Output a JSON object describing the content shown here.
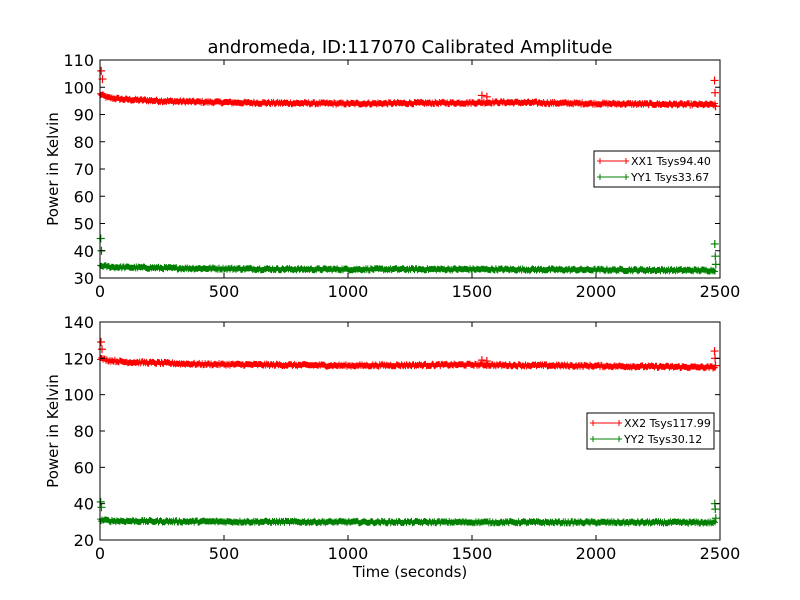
{
  "figure": {
    "title": "andromeda, ID:117070 Calibrated Amplitude",
    "xlabel": "Time (seconds)"
  },
  "chart_data": [
    {
      "type": "scatter",
      "ylabel": "Power in Kelvin",
      "xlim": [
        0,
        2500
      ],
      "ylim": [
        30,
        110
      ],
      "xticks": [
        0,
        500,
        1000,
        1500,
        2000,
        2500
      ],
      "yticks": [
        30,
        40,
        50,
        60,
        70,
        80,
        90,
        100,
        110
      ],
      "legend_position": "center-right",
      "series": [
        {
          "name": "XX1 Tsys94.40",
          "color": "#ff0000",
          "x_range": [
            0,
            2480
          ],
          "trend": [
            [
              0,
              97.5
            ],
            [
              30,
              96.2
            ],
            [
              100,
              95.5
            ],
            [
              300,
              94.8
            ],
            [
              600,
              94.3
            ],
            [
              1000,
              94.0
            ],
            [
              1500,
              94.3
            ],
            [
              1600,
              94.5
            ],
            [
              2000,
              94.0
            ],
            [
              2480,
              93.6
            ]
          ],
          "spikes": [
            [
              5,
              106
            ],
            [
              10,
              103
            ],
            [
              1540,
              97
            ],
            [
              1560,
              96.5
            ],
            [
              2478,
              102.5
            ],
            [
              2480,
              98
            ],
            [
              2482,
              93
            ]
          ]
        },
        {
          "name": "YY1 Tsys33.67",
          "color": "#008000",
          "x_range": [
            0,
            2480
          ],
          "trend": [
            [
              0,
              34.5
            ],
            [
              50,
              34.0
            ],
            [
              300,
              33.6
            ],
            [
              800,
              33.2
            ],
            [
              1500,
              33.2
            ],
            [
              2000,
              33.0
            ],
            [
              2480,
              32.8
            ]
          ],
          "spikes": [
            [
              3,
              44.5
            ],
            [
              6,
              40
            ],
            [
              2479,
              42.5
            ],
            [
              2481,
              38
            ],
            [
              2483,
              35
            ]
          ]
        }
      ]
    },
    {
      "type": "scatter",
      "ylabel": "Power in Kelvin",
      "xlim": [
        0,
        2500
      ],
      "ylim": [
        20,
        140
      ],
      "xticks": [
        0,
        500,
        1000,
        1500,
        2000,
        2500
      ],
      "yticks": [
        20,
        40,
        60,
        80,
        100,
        120,
        140
      ],
      "legend_position": "center-right",
      "series": [
        {
          "name": "XX2 Tsys117.99",
          "color": "#ff0000",
          "x_range": [
            0,
            2480
          ],
          "trend": [
            [
              0,
              120.0
            ],
            [
              30,
              119.0
            ],
            [
              100,
              118.0
            ],
            [
              400,
              116.8
            ],
            [
              1000,
              116.0
            ],
            [
              1500,
              116.5
            ],
            [
              1600,
              116.3
            ],
            [
              2000,
              115.8
            ],
            [
              2480,
              115.0
            ]
          ],
          "spikes": [
            [
              4,
              129
            ],
            [
              8,
              125
            ],
            [
              1540,
              119
            ],
            [
              1560,
              118.5
            ],
            [
              2478,
              124
            ],
            [
              2480,
              120
            ],
            [
              2482,
              116
            ]
          ]
        },
        {
          "name": "YY2 Tsys30.12",
          "color": "#008000",
          "x_range": [
            0,
            2480
          ],
          "trend": [
            [
              0,
              31.0
            ],
            [
              50,
              30.5
            ],
            [
              300,
              30.2
            ],
            [
              1000,
              29.9
            ],
            [
              2000,
              29.7
            ],
            [
              2480,
              29.6
            ]
          ],
          "spikes": [
            [
              3,
              41
            ],
            [
              6,
              38
            ],
            [
              2479,
              40
            ],
            [
              2481,
              37
            ],
            [
              2483,
              32
            ]
          ]
        }
      ]
    }
  ]
}
